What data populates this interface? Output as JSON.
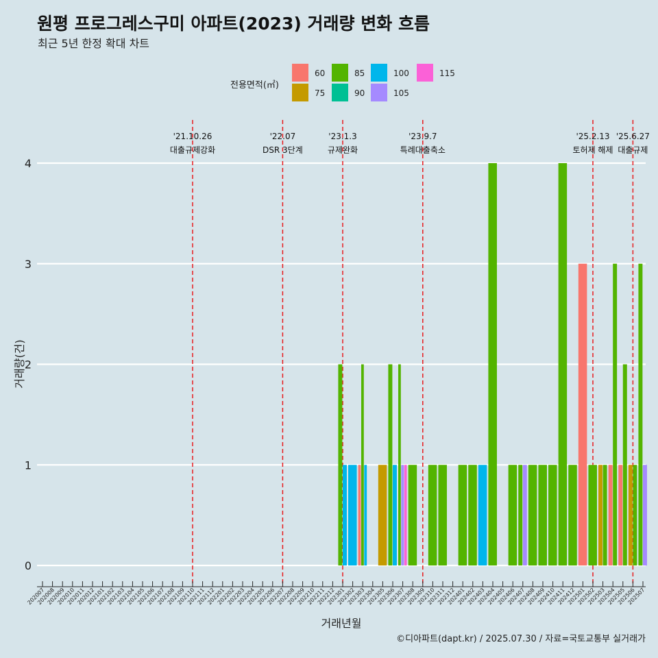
{
  "header": {
    "title": "원평 프로그레스구미 아파트(2023) 거래량 변화 흐름",
    "subtitle": "최근 5년 한정 확대 차트"
  },
  "legend": {
    "title": "전용면적(㎡)",
    "items": [
      {
        "label": "60",
        "color": "#f8766d"
      },
      {
        "label": "75",
        "color": "#c49a00"
      },
      {
        "label": "85",
        "color": "#53b400"
      },
      {
        "label": "90",
        "color": "#00c094"
      },
      {
        "label": "100",
        "color": "#00b6eb"
      },
      {
        "label": "105",
        "color": "#a58aff"
      },
      {
        "label": "115",
        "color": "#fb61d7"
      }
    ]
  },
  "caption": "©디아파트(dapt.kr) / 2025.07.30 / 자료=국토교통부 실거래가",
  "chart_data": {
    "type": "bar",
    "stacked": false,
    "title": "원평 프로그레스구미 아파트(2023) 거래량 변화 흐름",
    "subtitle": "최근 5년 한정 확대 차트",
    "xlabel": "거래년월",
    "ylabel": "거래량(건)",
    "ylim": [
      0,
      4
    ],
    "yticks": [
      0,
      1,
      2,
      3,
      4
    ],
    "grid": "horizontal",
    "legend_position": "top",
    "categories": [
      "202007",
      "202008",
      "202009",
      "202010",
      "202011",
      "202012",
      "202101",
      "202102",
      "202103",
      "202104",
      "202105",
      "202106",
      "202107",
      "202108",
      "202109",
      "202110",
      "202111",
      "202112",
      "202201",
      "202202",
      "202203",
      "202204",
      "202205",
      "202206",
      "202207",
      "202208",
      "202209",
      "202210",
      "202211",
      "202212",
      "202301",
      "202302",
      "202303",
      "202304",
      "202305",
      "202306",
      "202307",
      "202308",
      "202309",
      "202310",
      "202311",
      "202312",
      "202401",
      "202402",
      "202403",
      "202404",
      "202405",
      "202406",
      "202407",
      "202408",
      "202409",
      "202410",
      "202411",
      "202412",
      "202501",
      "202502",
      "202503",
      "202504",
      "202505",
      "202506",
      "202507"
    ],
    "tick_labels": [
      "202007",
      "202008",
      "202009",
      "202010",
      "202011",
      "202012",
      "202101",
      "202102",
      "202103",
      "202104",
      "202105",
      "202106",
      "202107",
      "202108",
      "202109",
      "202110",
      "202111",
      "202112",
      "202201",
      "202202",
      "202203",
      "202204",
      "202205",
      "202206",
      "202207",
      "202208",
      "202209",
      "202210",
      "202211",
      "202212",
      "202301",
      "202302",
      "202303",
      "202304",
      "202305",
      "202306",
      "202307",
      "202308",
      "202309",
      "202310",
      "202311",
      "202312",
      "202401",
      "202402",
      "202403",
      "202404",
      "202405",
      "202406",
      "202407",
      "202408",
      "202409",
      "202410",
      "202411",
      "202412",
      "202501",
      "202502",
      "202503",
      "202504",
      "202505",
      "202506",
      "202507"
    ],
    "series": [
      {
        "name": "60",
        "color": "#f8766d",
        "values": {
          "202303": 1,
          "202501": 3,
          "202504": 1,
          "202505": 1
        }
      },
      {
        "name": "75",
        "color": "#c49a00",
        "values": {
          "202305": 1,
          "202503": 1,
          "202506": 1
        }
      },
      {
        "name": "85",
        "color": "#53b400",
        "values": {
          "202301": 2,
          "202303": 2,
          "202306": 2,
          "202307": 2,
          "202308": 1,
          "202310": 1,
          "202311": 1,
          "202401": 1,
          "202402": 1,
          "202404": 4,
          "202406": 1,
          "202407": 1,
          "202408": 1,
          "202409": 1,
          "202410": 1,
          "202411": 4,
          "202412": 1,
          "202502": 1,
          "202503": 1,
          "202504": 3,
          "202505": 2,
          "202506": 1,
          "202507": 3
        }
      },
      {
        "name": "100",
        "color": "#00b6eb",
        "values": {
          "202301": 1,
          "202302": 1,
          "202303": 1,
          "202306": 1,
          "202403": 1
        }
      },
      {
        "name": "105",
        "color": "#a58aff",
        "values": {
          "202307": 1,
          "202407": 1,
          "202507": 1
        }
      },
      {
        "name": "115",
        "color": "#fb61d7",
        "values": {
          "202307": 1
        }
      }
    ],
    "events": [
      {
        "date_label": "'21.10.26",
        "text": "대출규제강화",
        "position": "202110"
      },
      {
        "date_label": "'22.07",
        "text": "DSR 3단계",
        "position": "202207"
      },
      {
        "date_label": "'23.1.3",
        "text": "규제완화",
        "position": "202301"
      },
      {
        "date_label": "'23.9.7",
        "text": "특례대출축소",
        "position": "202309"
      },
      {
        "date_label": "'25.2.13",
        "text": "토허제 해제",
        "position": "202502"
      },
      {
        "date_label": "'25.6.27",
        "text": "대출규제",
        "position": "202506"
      }
    ]
  }
}
